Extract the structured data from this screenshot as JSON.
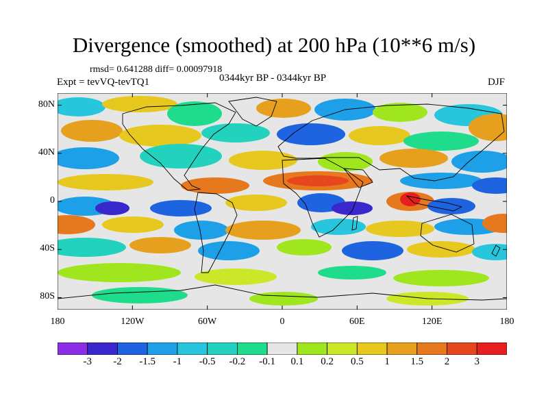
{
  "header": {
    "title": "Divergence (smoothed) at 200 hPa (10**6 m/s)",
    "stats": "rmsd= 0.641288 diff= 0.00097918",
    "experiment": "Expt = tevVQ-tevTQ1",
    "period": "0344kyr BP - 0344kyr BP",
    "season": "DJF"
  },
  "map": {
    "projection": "cylindrical equidistant",
    "lon_range": [
      -180,
      180
    ],
    "lat_range": [
      -90,
      90
    ],
    "lat_ticks": [
      {
        "value": 80,
        "label": "80N"
      },
      {
        "value": 40,
        "label": "40N"
      },
      {
        "value": 0,
        "label": "0"
      },
      {
        "value": -40,
        "label": "40S"
      },
      {
        "value": -80,
        "label": "80S"
      }
    ],
    "lon_ticks": [
      {
        "value": -180,
        "label": "180"
      },
      {
        "value": -120,
        "label": "120W"
      },
      {
        "value": -60,
        "label": "60W"
      },
      {
        "value": 0,
        "label": "0"
      },
      {
        "value": 60,
        "label": "60E"
      },
      {
        "value": 120,
        "label": "120E"
      },
      {
        "value": 180,
        "label": "180"
      }
    ],
    "background_color": "#e6e6e6",
    "coastline_color": "#000000"
  },
  "colorbar": {
    "colors": [
      "#8c2ee6",
      "#3a28cc",
      "#1e64e0",
      "#1ea0e8",
      "#28c6dc",
      "#22d2be",
      "#1edc8c",
      "#e6e6e6",
      "#a0e61e",
      "#cce628",
      "#e6c81e",
      "#e6a01e",
      "#e6781e",
      "#e6461e",
      "#e61e1e"
    ],
    "labels": [
      "-3",
      "-2",
      "-1.5",
      "-1",
      "-0.5",
      "-0.2",
      "-0.1",
      "0.1",
      "0.2",
      "0.5",
      "1",
      "1.5",
      "2",
      "3"
    ]
  }
}
